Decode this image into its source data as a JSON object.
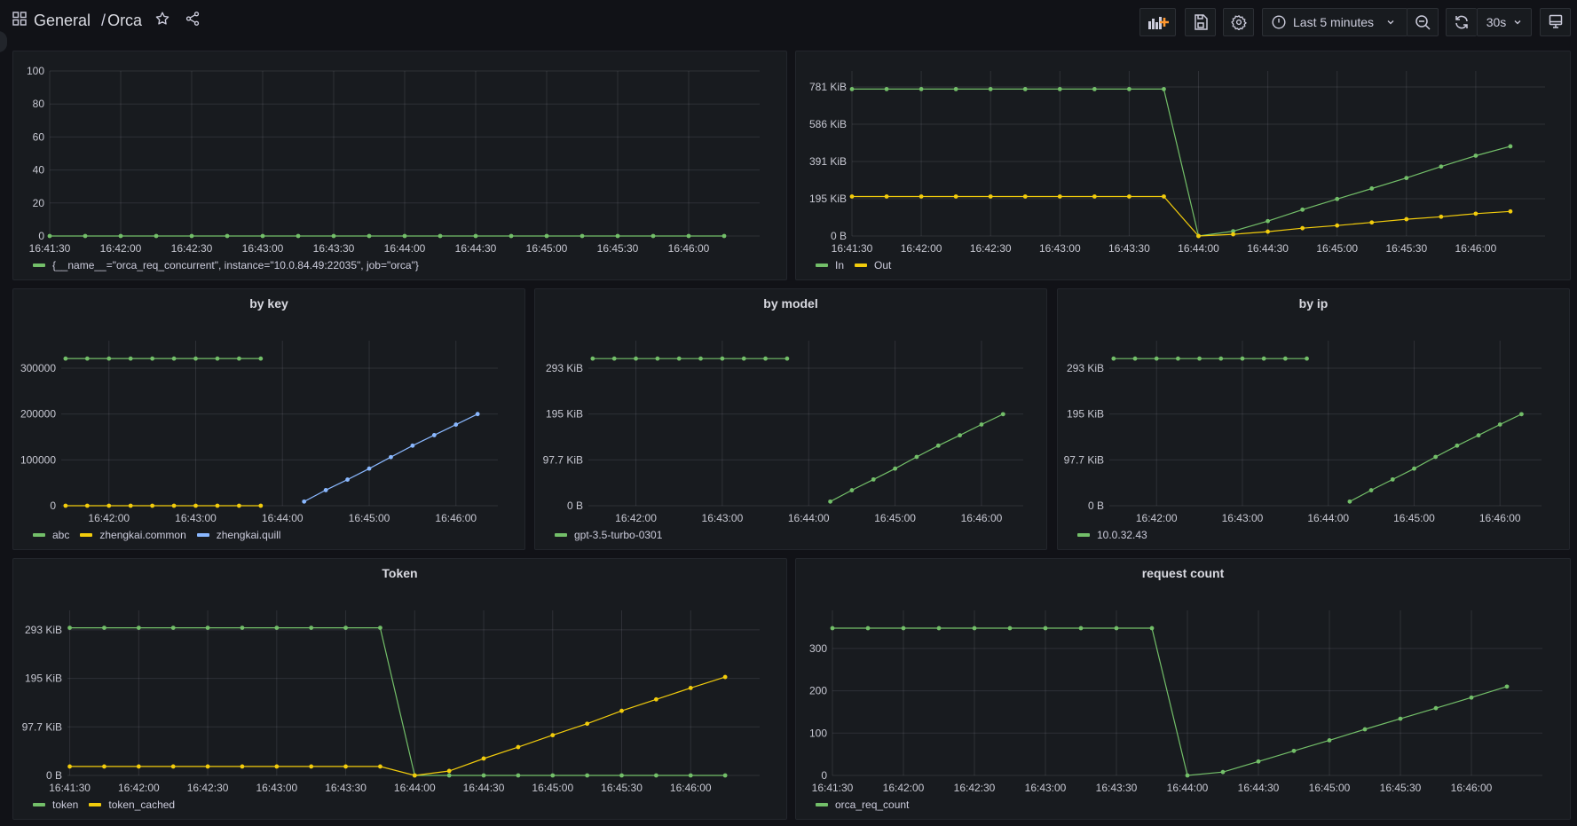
{
  "header": {
    "folder": "General",
    "dashboard": "Orca",
    "time_range": "Last 5 minutes",
    "refresh_interval": "30s",
    "icons": [
      "apps-icon",
      "star-icon",
      "share-icon",
      "add-panel-icon",
      "save-icon",
      "gear-icon",
      "clock-icon",
      "chevron-down-icon",
      "zoom-out-icon",
      "refresh-icon",
      "tv-icon"
    ]
  },
  "colors": {
    "background": "#111217",
    "panel": "#181b1f",
    "green": "#73bf69",
    "yellow": "#f2cc0c",
    "blue": "#8ab8ff",
    "accent": "#ff9830"
  },
  "chart_data": [
    {
      "type": "line",
      "title": "",
      "x": [
        "16:41:30",
        "16:41:45",
        "16:42:00",
        "16:42:15",
        "16:42:30",
        "16:42:45",
        "16:43:00",
        "16:43:15",
        "16:43:30",
        "16:43:45",
        "16:44:00",
        "16:44:15",
        "16:44:30",
        "16:44:45",
        "16:45:00",
        "16:45:15",
        "16:45:30",
        "16:45:45",
        "16:46:00",
        "16:46:15"
      ],
      "xlim": [
        "16:41:30",
        "16:46:30"
      ],
      "xticks": [
        "16:41:30",
        "16:42:00",
        "16:42:30",
        "16:43:00",
        "16:43:30",
        "16:44:00",
        "16:44:30",
        "16:45:00",
        "16:45:30",
        "16:46:00"
      ],
      "ylim": [
        0,
        100
      ],
      "yticks": [
        {
          "value": 0,
          "label": "0"
        },
        {
          "value": 20,
          "label": "20"
        },
        {
          "value": 40,
          "label": "40"
        },
        {
          "value": 60,
          "label": "60"
        },
        {
          "value": 80,
          "label": "80"
        },
        {
          "value": 100,
          "label": "100"
        }
      ],
      "grid": true,
      "legend": "bottom-left",
      "series": [
        {
          "name": "{__name__=\"orca_req_concurrent\", instance=\"10.0.84.49:22035\", job=\"orca\"}",
          "color": "#73bf69",
          "values": [
            0,
            0,
            0,
            0,
            0,
            0,
            0,
            0,
            0,
            0,
            0,
            0,
            0,
            0,
            0,
            0,
            0,
            0,
            0,
            0
          ]
        }
      ]
    },
    {
      "type": "line",
      "title": "",
      "yunit": "KiB",
      "x": [
        "16:41:30",
        "16:41:45",
        "16:42:00",
        "16:42:15",
        "16:42:30",
        "16:42:45",
        "16:43:00",
        "16:43:15",
        "16:43:30",
        "16:43:45",
        "16:44:00",
        "16:44:15",
        "16:44:30",
        "16:44:45",
        "16:45:00",
        "16:45:15",
        "16:45:30",
        "16:45:45",
        "16:46:00",
        "16:46:15"
      ],
      "xlim": [
        "16:41:30",
        "16:46:30"
      ],
      "xticks": [
        "16:41:30",
        "16:42:00",
        "16:42:30",
        "16:43:00",
        "16:43:30",
        "16:44:00",
        "16:44:30",
        "16:45:00",
        "16:45:30",
        "16:46:00"
      ],
      "ylim": [
        0,
        865
      ],
      "yticks": [
        {
          "value": 0,
          "label": "0 B"
        },
        {
          "value": 195.3,
          "label": "195 KiB"
        },
        {
          "value": 390.6,
          "label": "391 KiB"
        },
        {
          "value": 585.9,
          "label": "586 KiB"
        },
        {
          "value": 781.3,
          "label": "781 KiB"
        }
      ],
      "grid": true,
      "legend": "bottom-left",
      "series": [
        {
          "name": "In",
          "color": "#73bf69",
          "values": [
            770,
            770,
            770,
            770,
            770,
            770,
            770,
            770,
            770,
            770,
            0,
            25,
            78,
            138,
            194,
            249,
            304,
            364,
            421,
            470
          ]
        },
        {
          "name": "Out",
          "color": "#f2cc0c",
          "values": [
            207,
            207,
            207,
            207,
            207,
            207,
            207,
            207,
            207,
            207,
            0,
            9,
            23,
            41,
            55,
            71,
            88,
            101,
            117,
            129
          ]
        }
      ]
    },
    {
      "type": "line",
      "title": "by key",
      "x": [
        "16:41:30",
        "16:41:45",
        "16:42:00",
        "16:42:15",
        "16:42:30",
        "16:42:45",
        "16:43:00",
        "16:43:15",
        "16:43:30",
        "16:43:45",
        "16:44:00",
        "16:44:15",
        "16:44:30",
        "16:44:45",
        "16:45:00",
        "16:45:15",
        "16:45:30",
        "16:45:45",
        "16:46:00",
        "16:46:15"
      ],
      "xlim": [
        "16:41:27",
        "16:46:29"
      ],
      "xticks": [
        "16:42:00",
        "16:43:00",
        "16:44:00",
        "16:45:00",
        "16:46:00"
      ],
      "ylim": [
        0,
        360000
      ],
      "yticks": [
        {
          "value": 0,
          "label": "0"
        },
        {
          "value": 100000,
          "label": "100000"
        },
        {
          "value": 200000,
          "label": "200000"
        },
        {
          "value": 300000,
          "label": "300000"
        }
      ],
      "grid": true,
      "legend": "bottom-left",
      "series": [
        {
          "name": "abc",
          "color": "#73bf69",
          "values": [
            321000,
            321000,
            321000,
            321000,
            321000,
            321000,
            321000,
            321000,
            321000,
            321000,
            null,
            null,
            null,
            null,
            null,
            null,
            null,
            null,
            null,
            null
          ]
        },
        {
          "name": "zhengkai.common",
          "color": "#f2cc0c",
          "values": [
            0,
            0,
            0,
            0,
            0,
            0,
            0,
            0,
            0,
            0,
            null,
            null,
            null,
            null,
            null,
            null,
            null,
            null,
            null,
            null
          ]
        },
        {
          "name": "zhengkai.quill",
          "color": "#8ab8ff",
          "values": [
            null,
            null,
            null,
            null,
            null,
            null,
            null,
            null,
            null,
            null,
            null,
            9000,
            34000,
            57000,
            81000,
            106000,
            131000,
            154000,
            177000,
            200000
          ]
        }
      ]
    },
    {
      "type": "line",
      "title": "by model",
      "yunit": "KiB",
      "x": [
        "16:41:30",
        "16:41:45",
        "16:42:00",
        "16:42:15",
        "16:42:30",
        "16:42:45",
        "16:43:00",
        "16:43:15",
        "16:43:30",
        "16:43:45",
        "16:44:00",
        "16:44:15",
        "16:44:30",
        "16:44:45",
        "16:45:00",
        "16:45:15",
        "16:45:30",
        "16:45:45",
        "16:46:00",
        "16:46:15"
      ],
      "xlim": [
        "16:41:27",
        "16:46:29"
      ],
      "xticks": [
        "16:42:00",
        "16:43:00",
        "16:44:00",
        "16:45:00",
        "16:46:00"
      ],
      "ylim": [
        0,
        351.6
      ],
      "yticks": [
        {
          "value": 0,
          "label": "0 B"
        },
        {
          "value": 97.66,
          "label": "97.7 KiB"
        },
        {
          "value": 195.3,
          "label": "195 KiB"
        },
        {
          "value": 293,
          "label": "293 KiB"
        }
      ],
      "grid": true,
      "legend": "bottom-left",
      "series": [
        {
          "name": "gpt-3.5-turbo-0301",
          "color": "#73bf69",
          "values": [
            313.5,
            313.5,
            313.5,
            313.5,
            313.5,
            313.5,
            313.5,
            313.5,
            313.5,
            313.5,
            null,
            8.8,
            33,
            56,
            79,
            104,
            128,
            150,
            173,
            195
          ]
        }
      ]
    },
    {
      "type": "line",
      "title": "by ip",
      "yunit": "KiB",
      "x": [
        "16:41:30",
        "16:41:45",
        "16:42:00",
        "16:42:15",
        "16:42:30",
        "16:42:45",
        "16:43:00",
        "16:43:15",
        "16:43:30",
        "16:43:45",
        "16:44:00",
        "16:44:15",
        "16:44:30",
        "16:44:45",
        "16:45:00",
        "16:45:15",
        "16:45:30",
        "16:45:45",
        "16:46:00",
        "16:46:15"
      ],
      "xlim": [
        "16:41:27",
        "16:46:29"
      ],
      "xticks": [
        "16:42:00",
        "16:43:00",
        "16:44:00",
        "16:45:00",
        "16:46:00"
      ],
      "ylim": [
        0,
        351.6
      ],
      "yticks": [
        {
          "value": 0,
          "label": "0 B"
        },
        {
          "value": 97.66,
          "label": "97.7 KiB"
        },
        {
          "value": 195.3,
          "label": "195 KiB"
        },
        {
          "value": 293,
          "label": "293 KiB"
        }
      ],
      "grid": true,
      "legend": "bottom-left",
      "series": [
        {
          "name": "10.0.32.43",
          "color": "#73bf69",
          "values": [
            313.5,
            313.5,
            313.5,
            313.5,
            313.5,
            313.5,
            313.5,
            313.5,
            313.5,
            313.5,
            null,
            8.8,
            33,
            56,
            79,
            104,
            128,
            150,
            173,
            195
          ]
        }
      ]
    },
    {
      "type": "line",
      "title": "Token",
      "yunit": "KiB",
      "x": [
        "16:41:30",
        "16:41:45",
        "16:42:00",
        "16:42:15",
        "16:42:30",
        "16:42:45",
        "16:43:00",
        "16:43:15",
        "16:43:30",
        "16:43:45",
        "16:44:00",
        "16:44:15",
        "16:44:30",
        "16:44:45",
        "16:45:00",
        "16:45:15",
        "16:45:30",
        "16:45:45",
        "16:46:00",
        "16:46:15"
      ],
      "xlim": [
        "16:41:29",
        "16:46:30"
      ],
      "xticks": [
        "16:41:30",
        "16:42:00",
        "16:42:30",
        "16:43:00",
        "16:43:30",
        "16:44:00",
        "16:44:30",
        "16:45:00",
        "16:45:30",
        "16:46:00"
      ],
      "ylim": [
        0,
        332
      ],
      "yticks": [
        {
          "value": 0,
          "label": "0 B"
        },
        {
          "value": 97.66,
          "label": "97.7 KiB"
        },
        {
          "value": 195.3,
          "label": "195 KiB"
        },
        {
          "value": 293,
          "label": "293 KiB"
        }
      ],
      "grid": true,
      "legend": "bottom-left",
      "series": [
        {
          "name": "token",
          "color": "#73bf69",
          "values": [
            297,
            297,
            297,
            297,
            297,
            297,
            297,
            297,
            297,
            297,
            0,
            0,
            0,
            0,
            0,
            0,
            0,
            0,
            0,
            0
          ]
        },
        {
          "name": "token_cached",
          "color": "#f2cc0c",
          "values": [
            18,
            18,
            18,
            18,
            18,
            18,
            18,
            18,
            18,
            18,
            0,
            9,
            34,
            57,
            81,
            104,
            130,
            153,
            176,
            198
          ]
        }
      ]
    },
    {
      "type": "line",
      "title": "request count",
      "x": [
        "16:41:30",
        "16:41:45",
        "16:42:00",
        "16:42:15",
        "16:42:30",
        "16:42:45",
        "16:43:00",
        "16:43:15",
        "16:43:30",
        "16:43:45",
        "16:44:00",
        "16:44:15",
        "16:44:30",
        "16:44:45",
        "16:45:00",
        "16:45:15",
        "16:45:30",
        "16:45:45",
        "16:46:00",
        "16:46:15"
      ],
      "xlim": [
        "16:41:30",
        "16:46:30"
      ],
      "xticks": [
        "16:41:30",
        "16:42:00",
        "16:42:30",
        "16:43:00",
        "16:43:30",
        "16:44:00",
        "16:44:30",
        "16:45:00",
        "16:45:30",
        "16:46:00"
      ],
      "ylim": [
        0,
        390
      ],
      "yticks": [
        {
          "value": 0,
          "label": "0"
        },
        {
          "value": 100,
          "label": "100"
        },
        {
          "value": 200,
          "label": "200"
        },
        {
          "value": 300,
          "label": "300"
        }
      ],
      "grid": true,
      "legend": "bottom-left",
      "series": [
        {
          "name": "orca_req_count",
          "color": "#73bf69",
          "values": [
            348,
            348,
            348,
            348,
            348,
            348,
            348,
            348,
            348,
            348,
            0,
            8,
            33,
            58,
            83,
            109,
            134,
            159,
            184,
            210
          ]
        }
      ]
    }
  ]
}
